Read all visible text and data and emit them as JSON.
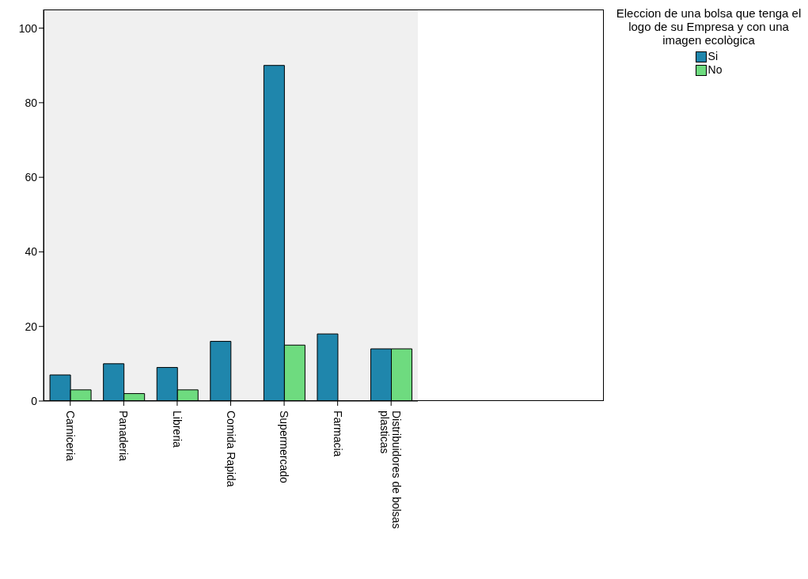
{
  "chart_data": {
    "type": "bar",
    "categories": [
      "Carniceria",
      "Panaderia",
      "Libreria",
      "Comida Rapida",
      "Supermercado",
      "Farmacia",
      "Distribuidores de bolsas plasticas"
    ],
    "series": [
      {
        "name": "Si",
        "color": "#1f86ac",
        "values": [
          7,
          10,
          9,
          16,
          90,
          18,
          14
        ]
      },
      {
        "name": "No",
        "color": "#6edb7f",
        "values": [
          3,
          2,
          3,
          null,
          15,
          null,
          14
        ]
      }
    ],
    "legend_title": "Eleccion de una bolsa que tenga el logo de su Empresa y con una imagen ecològica",
    "legend": "right",
    "ylim": [
      0,
      105
    ],
    "yticks": [
      0,
      20,
      40,
      60,
      80,
      100
    ],
    "grid": false
  }
}
